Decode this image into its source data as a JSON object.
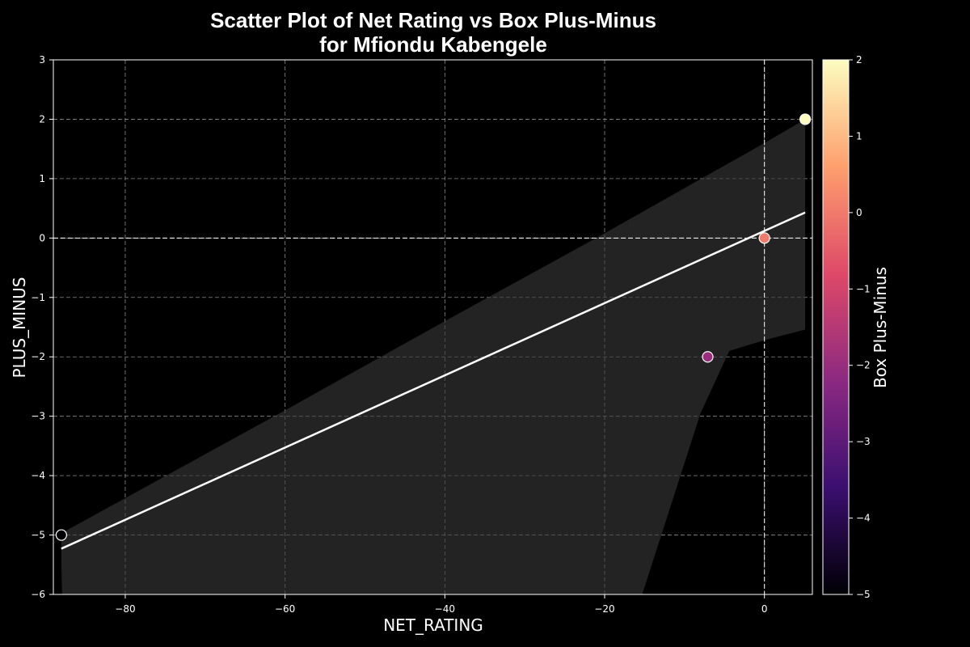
{
  "chart_data": {
    "type": "scatter",
    "title_lines": [
      "Scatter Plot of Net Rating vs Box Plus-Minus",
      "for Mfiondu Kabengele"
    ],
    "xlabel": "NET_RATING",
    "ylabel": "PLUS_MINUS",
    "colorbar_label": "Box Plus-Minus",
    "xlim": [
      -89,
      6
    ],
    "ylim": [
      -6,
      3
    ],
    "x_ticks": [
      -80,
      -60,
      -40,
      -20,
      0
    ],
    "y_ticks": [
      -6,
      -5,
      -4,
      -3,
      -2,
      -1,
      0,
      1,
      2,
      3
    ],
    "colorbar_range": [
      -5,
      2
    ],
    "colorbar_ticks": [
      -5,
      -4,
      -3,
      -2,
      -1,
      0,
      1,
      2
    ],
    "grid": true,
    "zero_reference_lines": true,
    "colormap": "magma",
    "colormap_stops": [
      "#000004",
      "#3b0f70",
      "#8c2981",
      "#de4968",
      "#fe9f6d",
      "#fcfdbf"
    ],
    "points": [
      {
        "x": -88.0,
        "y": -5,
        "c": -5
      },
      {
        "x": -7.1,
        "y": -2,
        "c": -2
      },
      {
        "x": 0.0,
        "y": 0,
        "c": 0
      },
      {
        "x": 5.1,
        "y": 2,
        "c": 2
      }
    ],
    "regression_line": [
      {
        "x": -88.0,
        "y": -5.23
      },
      {
        "x": 5.1,
        "y": 0.43
      }
    ],
    "confidence_band": {
      "upper": [
        {
          "x": -88.0,
          "y": -4.97
        },
        {
          "x": -60.0,
          "y": -2.9
        },
        {
          "x": -40.0,
          "y": -1.4
        },
        {
          "x": -20.0,
          "y": 0.08
        },
        {
          "x": 0.0,
          "y": 1.6
        },
        {
          "x": 5.1,
          "y": 2.0
        }
      ],
      "lower": [
        {
          "x": -88.0,
          "y": -5.5
        },
        {
          "x": -87.9,
          "y": -6.0
        },
        {
          "x": -15.3,
          "y": -6.0
        },
        {
          "x": -8.0,
          "y": -2.95
        },
        {
          "x": -4.4,
          "y": -1.9
        },
        {
          "x": 0.0,
          "y": -1.72
        },
        {
          "x": 5.1,
          "y": -1.54
        }
      ]
    }
  },
  "colors": {
    "background": "#000000",
    "foreground": "#ffffff",
    "grid": "#8a8a8a",
    "band": "#3a3a3a",
    "regression": "#ffffff"
  }
}
